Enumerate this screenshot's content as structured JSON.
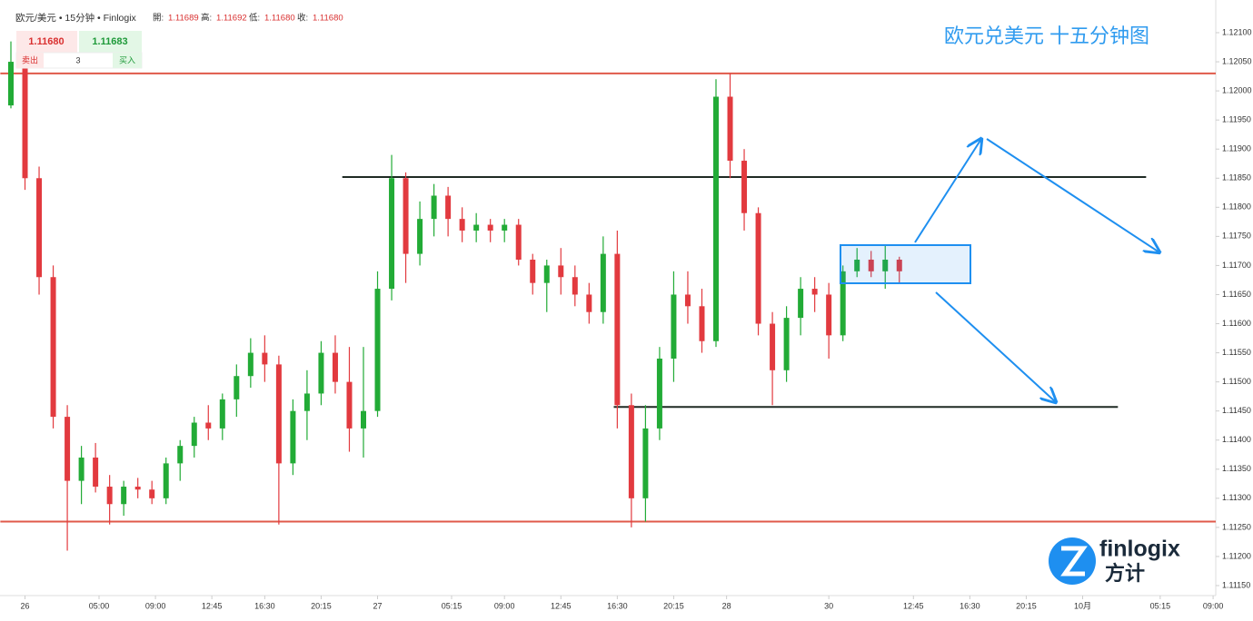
{
  "chart_data": {
    "type": "candlestick",
    "title": "欧元兑美元 十五分钟图",
    "header": {
      "symbol": "欧元/美元 • 15分钟 • Finlogix",
      "fields": [
        {
          "label": "開:",
          "value": "1.11689"
        },
        {
          "label": "高:",
          "value": "1.11692"
        },
        {
          "label": "低:",
          "value": "1.11680"
        },
        {
          "label": "收:",
          "value": "1.11680"
        }
      ]
    },
    "quote": {
      "bid": "1.11680",
      "ask": "1.11683",
      "sell": "卖出",
      "qty": "3",
      "buy": "买入"
    },
    "logo": {
      "name": "finlogix",
      "cn": "方计"
    },
    "up_color": "#22ab36",
    "down_color": "#e23a3f",
    "x": [
      0,
      4,
      8,
      12,
      16,
      20,
      24,
      28,
      32,
      36,
      40,
      44,
      48,
      52,
      56,
      60,
      64,
      68,
      72,
      76,
      80,
      84,
      88,
      92,
      96,
      100,
      104,
      108,
      112,
      116,
      120,
      124,
      128,
      132,
      136,
      140,
      144,
      148,
      152,
      156,
      160,
      164,
      168,
      172,
      176,
      180,
      184,
      188,
      192,
      196,
      200,
      204,
      208,
      212,
      216,
      220,
      224,
      228,
      232,
      236,
      240,
      244,
      248,
      252
    ],
    "open": [
      1.11975,
      1.1205,
      1.1185,
      1.1168,
      1.1144,
      1.1133,
      1.1137,
      1.1132,
      1.1129,
      1.1132,
      1.11315,
      1.113,
      1.1136,
      1.1139,
      1.1143,
      1.1142,
      1.1147,
      1.1151,
      1.1155,
      1.1153,
      1.1136,
      1.1145,
      1.1148,
      1.1155,
      1.115,
      1.1142,
      1.1145,
      1.1166,
      1.1185,
      1.1172,
      1.1178,
      1.1182,
      1.1178,
      1.1176,
      1.1177,
      1.1176,
      1.1177,
      1.1171,
      1.1167,
      1.117,
      1.1168,
      1.1165,
      1.1162,
      1.1172,
      1.1146,
      1.113,
      1.1142,
      1.1154,
      1.1165,
      1.1163,
      1.1157,
      1.1199,
      1.1188,
      1.1179,
      1.116,
      1.1152,
      1.1161,
      1.1166,
      1.1165,
      1.1158,
      1.1169,
      1.1171,
      1.1169,
      1.1171
    ],
    "high": [
      1.12085,
      1.1206,
      1.1187,
      1.117,
      1.1146,
      1.1139,
      1.11395,
      1.1134,
      1.1133,
      1.11335,
      1.1133,
      1.1137,
      1.114,
      1.1144,
      1.1146,
      1.1148,
      1.1153,
      1.11575,
      1.1158,
      1.11545,
      1.1147,
      1.1152,
      1.1157,
      1.1158,
      1.1156,
      1.1156,
      1.1169,
      1.1189,
      1.1186,
      1.1181,
      1.1184,
      1.11835,
      1.118,
      1.1179,
      1.1178,
      1.1178,
      1.1178,
      1.1172,
      1.1171,
      1.1173,
      1.117,
      1.1167,
      1.1175,
      1.1176,
      1.1148,
      1.1146,
      1.1156,
      1.1169,
      1.1169,
      1.1166,
      1.1202,
      1.1203,
      1.119,
      1.118,
      1.1162,
      1.1163,
      1.1168,
      1.1168,
      1.1167,
      1.117,
      1.1173,
      1.11725,
      1.11735,
      1.11715
    ],
    "low": [
      1.1197,
      1.1183,
      1.1165,
      1.1142,
      1.1121,
      1.1129,
      1.1131,
      1.11255,
      1.1127,
      1.113,
      1.1129,
      1.1129,
      1.1133,
      1.1137,
      1.114,
      1.114,
      1.1144,
      1.1149,
      1.115,
      1.11255,
      1.1134,
      1.114,
      1.1146,
      1.1148,
      1.1138,
      1.1137,
      1.1144,
      1.1164,
      1.1167,
      1.117,
      1.1175,
      1.1175,
      1.1174,
      1.1174,
      1.1174,
      1.1174,
      1.117,
      1.1165,
      1.1162,
      1.1165,
      1.1163,
      1.116,
      1.116,
      1.1142,
      1.1125,
      1.1126,
      1.114,
      1.115,
      1.116,
      1.1155,
      1.1156,
      1.1185,
      1.1176,
      1.1158,
      1.1146,
      1.115,
      1.1158,
      1.1162,
      1.1154,
      1.1157,
      1.1168,
      1.1168,
      1.1166,
      1.1167
    ],
    "close": [
      1.1205,
      1.1185,
      1.1168,
      1.1144,
      1.1133,
      1.1137,
      1.1132,
      1.1129,
      1.1132,
      1.11315,
      1.113,
      1.1136,
      1.1139,
      1.1143,
      1.1142,
      1.1147,
      1.1151,
      1.1155,
      1.1153,
      1.1136,
      1.1145,
      1.1148,
      1.1155,
      1.115,
      1.1142,
      1.1145,
      1.1166,
      1.1185,
      1.1172,
      1.1178,
      1.1182,
      1.1178,
      1.1176,
      1.1177,
      1.1176,
      1.1177,
      1.1171,
      1.1167,
      1.117,
      1.1168,
      1.1165,
      1.1162,
      1.1172,
      1.1146,
      1.113,
      1.1142,
      1.1154,
      1.1165,
      1.1163,
      1.1157,
      1.1199,
      1.1188,
      1.1179,
      1.116,
      1.1152,
      1.1161,
      1.1166,
      1.1165,
      1.1158,
      1.1169,
      1.1171,
      1.1169,
      1.1171,
      1.1169
    ],
    "levels": [
      {
        "value": 1.1203,
        "color": "#e05a4a",
        "from": -3,
        "to": 345
      },
      {
        "value": 1.1126,
        "color": "#e05a4a",
        "from": -3,
        "to": 345
      },
      {
        "value": 1.11852,
        "color": "#1f2a24",
        "from": 94,
        "to": 322
      },
      {
        "value": 1.11457,
        "color": "#1f2a24",
        "from": 171,
        "to": 314
      }
    ],
    "xlim": [
      -3,
      342
    ],
    "ylim": [
      1.1113,
      1.12155
    ],
    "xticks": [
      {
        "value": 4,
        "label": "26"
      },
      {
        "value": 25,
        "label": "05:00"
      },
      {
        "value": 41,
        "label": "09:00"
      },
      {
        "value": 57,
        "label": "12:45"
      },
      {
        "value": 72,
        "label": "16:30"
      },
      {
        "value": 88,
        "label": "20:15"
      },
      {
        "value": 104,
        "label": "27"
      },
      {
        "value": 125,
        "label": "05:15"
      },
      {
        "value": 140,
        "label": "09:00"
      },
      {
        "value": 156,
        "label": "12:45"
      },
      {
        "value": 172,
        "label": "16:30"
      },
      {
        "value": 188,
        "label": "20:15"
      },
      {
        "value": 203,
        "label": "28"
      },
      {
        "value": 232,
        "label": "30"
      },
      {
        "value": 256,
        "label": "12:45"
      },
      {
        "value": 272,
        "label": "16:30"
      },
      {
        "value": 288,
        "label": "20:15"
      },
      {
        "value": 304,
        "label": "10月"
      },
      {
        "value": 326,
        "label": "05:15"
      },
      {
        "value": 341,
        "label": "09:00"
      }
    ],
    "yticks": [
      {
        "value": 1.121,
        "label": "1.12100"
      },
      {
        "value": 1.1205,
        "label": "1.12050"
      },
      {
        "value": 1.12,
        "label": "1.12000"
      },
      {
        "value": 1.1195,
        "label": "1.11950"
      },
      {
        "value": 1.119,
        "label": "1.11900"
      },
      {
        "value": 1.1185,
        "label": "1.11850"
      },
      {
        "value": 1.118,
        "label": "1.11800"
      },
      {
        "value": 1.1175,
        "label": "1.11750"
      },
      {
        "value": 1.117,
        "label": "1.11700"
      },
      {
        "value": 1.1165,
        "label": "1.11650"
      },
      {
        "value": 1.116,
        "label": "1.11600"
      },
      {
        "value": 1.1155,
        "label": "1.11550"
      },
      {
        "value": 1.115,
        "label": "1.11500"
      },
      {
        "value": 1.1145,
        "label": "1.11450"
      },
      {
        "value": 1.114,
        "label": "1.11400"
      },
      {
        "value": 1.1135,
        "label": "1.11350"
      },
      {
        "value": 1.113,
        "label": "1.11300"
      },
      {
        "value": 1.1125,
        "label": "1.11250"
      },
      {
        "value": 1.112,
        "label": "1.11200"
      },
      {
        "value": 1.1115,
        "label": "1.11150"
      }
    ]
  }
}
